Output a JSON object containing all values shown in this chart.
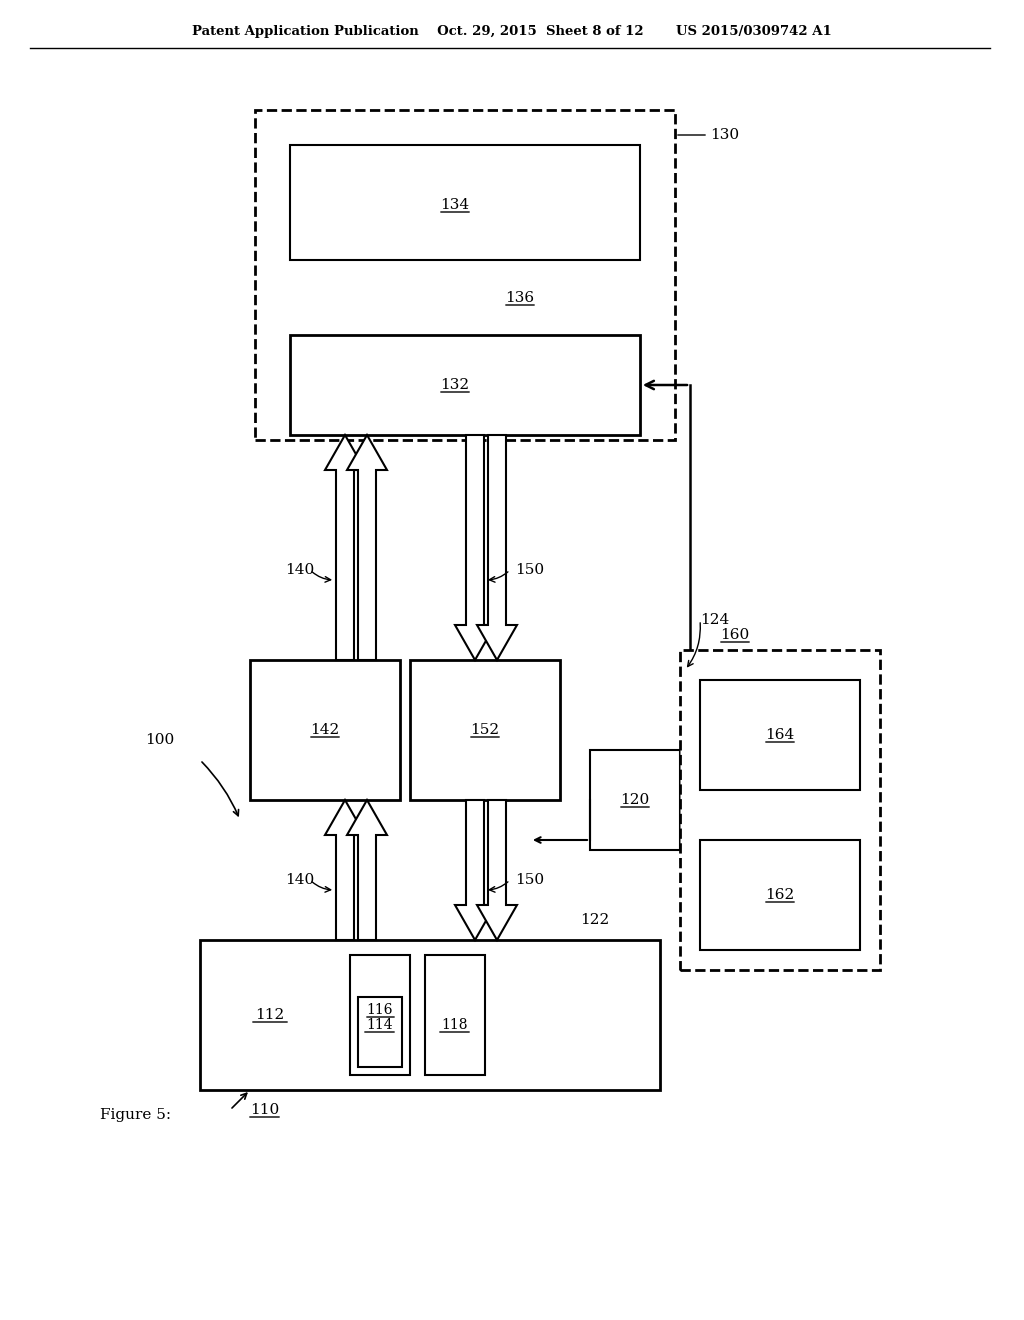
{
  "bg_color": "#ffffff",
  "line_color": "#000000",
  "header_text": "Patent Application Publication    Oct. 29, 2015  Sheet 8 of 12       US 2015/0309742 A1",
  "figure_label": "Figure 5:",
  "label_100": "100",
  "label_110": "110",
  "label_112": "112",
  "label_114": "114",
  "label_116": "116",
  "label_118": "118",
  "label_120": "120",
  "label_122": "122",
  "label_124": "124",
  "label_130": "130",
  "label_132": "132",
  "label_134": "134",
  "label_136": "136",
  "label_140": "140",
  "label_142": "142",
  "label_150": "150",
  "label_152": "152",
  "label_160": "160",
  "label_162": "162",
  "label_164": "164"
}
